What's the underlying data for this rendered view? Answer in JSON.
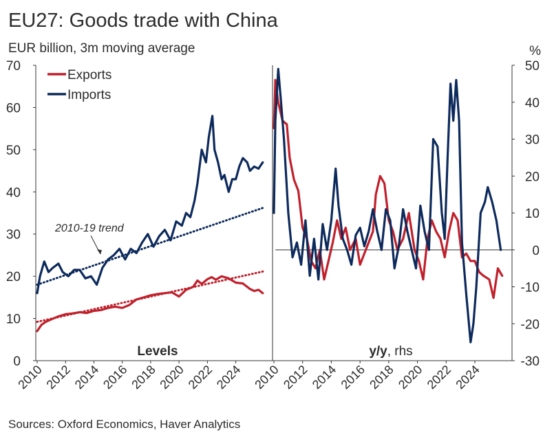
{
  "title": "EU27: Goods trade with China",
  "subtitle": "EUR billion, 3m moving average",
  "source": "Sources: Oxford Economics, Haver Analytics",
  "colors": {
    "exports": "#c0202c",
    "imports": "#0d2a5c",
    "axis": "#333333"
  },
  "chart_data": [
    {
      "type": "line",
      "panel_label": "Levels",
      "ylim": [
        0,
        70
      ],
      "yticks": [
        0,
        10,
        20,
        30,
        40,
        50,
        60,
        70
      ],
      "xlim": [
        2010,
        2026.3
      ],
      "xticks": [
        "2010",
        "2012",
        "2014",
        "2016",
        "2018",
        "2020",
        "2022",
        "2024"
      ],
      "xtick_values": [
        2010,
        2012,
        2014,
        2016,
        2018,
        2020,
        2022,
        2024
      ],
      "legend": [
        "Exports",
        "Imports"
      ],
      "annotation": "2010-19 trend",
      "series": [
        {
          "name": "Exports",
          "x": [
            2010.0,
            2010.3,
            2010.6,
            2011.0,
            2011.5,
            2012.0,
            2012.5,
            2013.0,
            2013.5,
            2014.0,
            2014.5,
            2015.0,
            2015.5,
            2016.0,
            2016.5,
            2017.0,
            2017.5,
            2018.0,
            2018.5,
            2019.0,
            2019.5,
            2020.0,
            2020.5,
            2021.0,
            2021.3,
            2021.6,
            2022.0,
            2022.3,
            2022.6,
            2023.0,
            2023.5,
            2024.0,
            2024.5,
            2025.0,
            2025.3,
            2025.6,
            2025.9
          ],
          "values": [
            7,
            8.5,
            9.2,
            9.8,
            10.5,
            11,
            11.2,
            11.5,
            11.3,
            11.8,
            12,
            12.5,
            12.8,
            12.5,
            13.2,
            14.5,
            15,
            15.5,
            15.8,
            16,
            16.2,
            15.2,
            16.8,
            17.5,
            19,
            18.2,
            19.3,
            19.8,
            19.2,
            20,
            19.5,
            18.5,
            18.3,
            17,
            16.5,
            16.8,
            16
          ]
        },
        {
          "name": "Imports",
          "x": [
            2010.0,
            2010.2,
            2010.5,
            2010.8,
            2011.1,
            2011.5,
            2011.8,
            2012.2,
            2012.6,
            2013.0,
            2013.4,
            2013.8,
            2014.2,
            2014.6,
            2015.0,
            2015.4,
            2015.8,
            2016.2,
            2016.6,
            2017.0,
            2017.4,
            2017.8,
            2018.2,
            2018.6,
            2019.0,
            2019.4,
            2019.8,
            2020.2,
            2020.5,
            2020.8,
            2021.1,
            2021.3,
            2021.6,
            2021.9,
            2022.1,
            2022.35,
            2022.5,
            2022.75,
            2023.0,
            2023.2,
            2023.5,
            2023.75,
            2024.0,
            2024.25,
            2024.5,
            2024.8,
            2025.0,
            2025.3,
            2025.6,
            2025.9
          ],
          "values": [
            16,
            20,
            23.5,
            21,
            22,
            23,
            21,
            20,
            21.5,
            21.5,
            19.5,
            20,
            18,
            22,
            24,
            25,
            26.5,
            24,
            26.5,
            25.5,
            28,
            30,
            27,
            29.5,
            31,
            28.5,
            33,
            32,
            35,
            34,
            38,
            42,
            50,
            47,
            53,
            58,
            50,
            47,
            43,
            44,
            40,
            43,
            43,
            46,
            48,
            47,
            45,
            46,
            45.5,
            47
          ]
        }
      ],
      "trend_lines": [
        {
          "name": "Exports 2010-19 trend",
          "x": [
            2010,
            2026
          ],
          "values": [
            9.2,
            21.2
          ]
        },
        {
          "name": "Imports 2010-19 trend",
          "x": [
            2010,
            2026
          ],
          "values": [
            18,
            36.3
          ]
        }
      ]
    },
    {
      "type": "line",
      "panel_label": "y/y",
      "panel_label_suffix": ", rhs",
      "y_unit": "%",
      "ylim": [
        -30,
        50
      ],
      "yticks": [
        -30,
        -20,
        -10,
        0,
        10,
        20,
        30,
        40,
        50
      ],
      "xlim": [
        2010,
        2026.3
      ],
      "xticks": [
        "2010",
        "2012",
        "2014",
        "2016",
        "2018",
        "2020",
        "2022",
        "2024"
      ],
      "xtick_values": [
        2010,
        2012,
        2014,
        2016,
        2018,
        2020,
        2022,
        2024
      ],
      "series": [
        {
          "name": "Exports",
          "x": [
            2010.0,
            2010.1,
            2010.3,
            2010.6,
            2010.9,
            2011.1,
            2011.4,
            2011.7,
            2012.0,
            2012.3,
            2012.6,
            2012.9,
            2013.2,
            2013.5,
            2013.8,
            2014.1,
            2014.4,
            2014.7,
            2015.0,
            2015.3,
            2015.7,
            2016.0,
            2016.3,
            2016.6,
            2016.9,
            2017.1,
            2017.4,
            2017.7,
            2018.0,
            2018.3,
            2018.6,
            2019.0,
            2019.4,
            2019.8,
            2020.1,
            2020.4,
            2020.7,
            2021.0,
            2021.3,
            2021.6,
            2021.9,
            2022.2,
            2022.5,
            2022.8,
            2023.1,
            2023.4,
            2023.7,
            2024.0,
            2024.3,
            2024.6,
            2025.0,
            2025.3,
            2025.6,
            2025.9
          ],
          "values": [
            33,
            46,
            40,
            35,
            34,
            25,
            19,
            16,
            6,
            3,
            -3,
            -5,
            0,
            -8,
            -3,
            2,
            8,
            3,
            6,
            0,
            3,
            -4,
            -1,
            2,
            5,
            15,
            20,
            18,
            8,
            5,
            0,
            3,
            10,
            0,
            -3,
            -8,
            3,
            8,
            5,
            3,
            -2,
            5,
            10,
            8,
            -2,
            -1,
            -3,
            -3,
            -6,
            -7,
            -8,
            -13,
            -5,
            -7
          ]
        },
        {
          "name": "Imports",
          "x": [
            2010.0,
            2010.1,
            2010.3,
            2010.5,
            2010.7,
            2011.0,
            2011.3,
            2011.6,
            2011.9,
            2012.2,
            2012.5,
            2012.8,
            2013.1,
            2013.4,
            2013.7,
            2014.0,
            2014.3,
            2014.5,
            2014.8,
            2015.1,
            2015.4,
            2015.7,
            2016.0,
            2016.3,
            2016.6,
            2016.9,
            2017.2,
            2017.5,
            2017.8,
            2018.1,
            2018.4,
            2018.7,
            2019.0,
            2019.3,
            2019.6,
            2019.9,
            2020.2,
            2020.5,
            2020.8,
            2021.1,
            2021.4,
            2021.7,
            2021.9,
            2022.1,
            2022.3,
            2022.5,
            2022.7,
            2022.9,
            2023.1,
            2023.4,
            2023.7,
            2023.9,
            2024.1,
            2024.4,
            2024.7,
            2024.9,
            2025.2,
            2025.5,
            2025.8
          ],
          "values": [
            10,
            35,
            49,
            40,
            30,
            10,
            -2,
            2,
            -4,
            8,
            -7,
            3,
            -8,
            7,
            0,
            8,
            22,
            12,
            3,
            0,
            -4,
            4,
            6,
            1,
            5,
            11,
            5,
            0,
            11,
            8,
            -5,
            1,
            11,
            5,
            0,
            -5,
            12,
            5,
            0,
            30,
            28,
            10,
            3,
            25,
            45,
            35,
            46,
            35,
            2,
            -12,
            -25,
            -20,
            -10,
            10,
            13,
            17,
            13,
            8,
            0
          ]
        }
      ]
    }
  ]
}
